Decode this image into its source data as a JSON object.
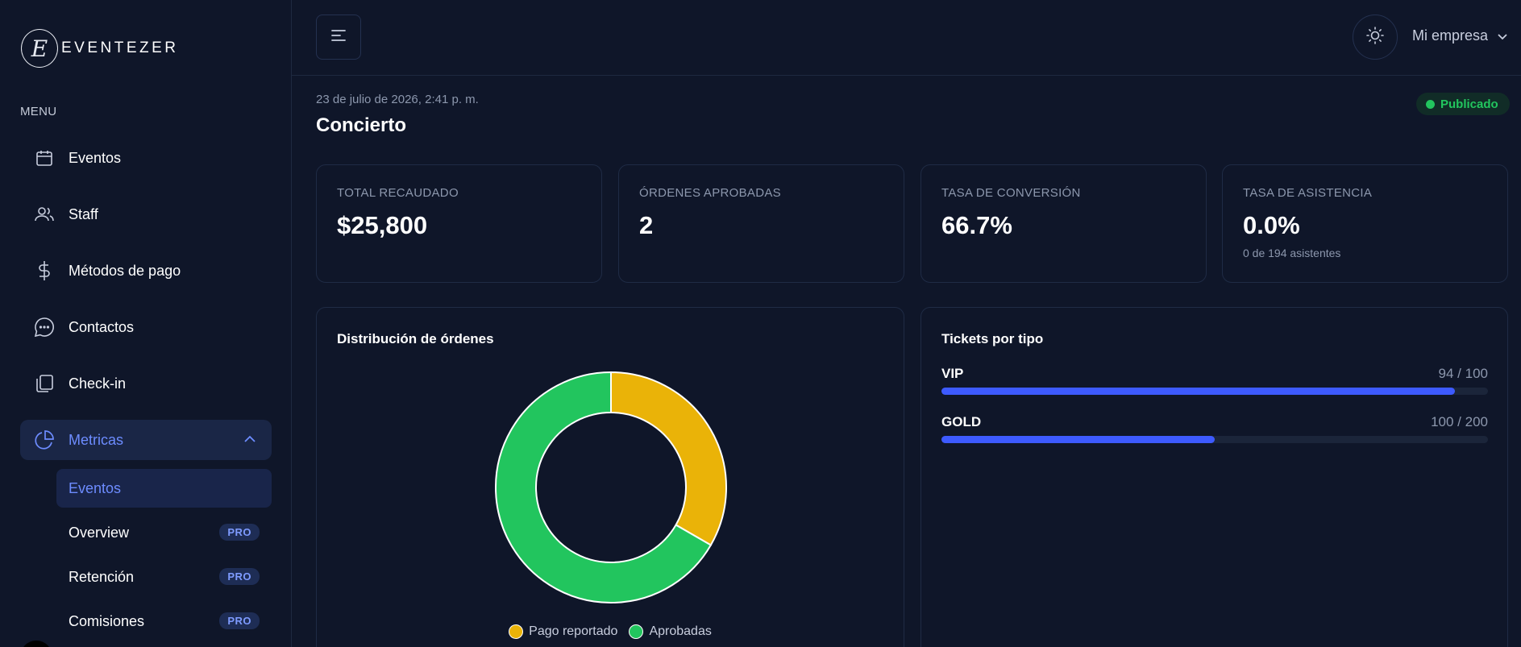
{
  "sidebar": {
    "logo_letter": "E",
    "logo_text": "EVENTEZER",
    "menu_label": "MENU",
    "items": [
      {
        "label": "Eventos",
        "icon": "calendar-icon"
      },
      {
        "label": "Staff",
        "icon": "users-icon"
      },
      {
        "label": "Métodos de pago",
        "icon": "dollar-icon"
      },
      {
        "label": "Contactos",
        "icon": "chat-icon"
      },
      {
        "label": "Check-in",
        "icon": "copy-icon"
      },
      {
        "label": "Metricas",
        "icon": "pie-chart-icon",
        "active": true,
        "expanded": true
      }
    ],
    "subitems": [
      {
        "label": "Eventos",
        "active": true
      },
      {
        "label": "Overview",
        "badge": "PRO"
      },
      {
        "label": "Retención",
        "badge": "PRO"
      },
      {
        "label": "Comisiones",
        "badge": "PRO"
      }
    ]
  },
  "header": {
    "menu_icon": "menu-icon",
    "theme_icon": "sun-icon",
    "company_label": "Mi empresa"
  },
  "event": {
    "date": "23 de julio de 2026, 2:41 p. m.",
    "title": "Concierto",
    "status": "Publicado",
    "status_color": "#22c55e"
  },
  "kpis": [
    {
      "label": "TOTAL RECAUDADO",
      "value": "$25,800",
      "sub": ""
    },
    {
      "label": "ÓRDENES APROBADAS",
      "value": "2",
      "sub": ""
    },
    {
      "label": "TASA DE CONVERSIÓN",
      "value": "66.7%",
      "sub": ""
    },
    {
      "label": "TASA DE ASISTENCIA",
      "value": "0.0%",
      "sub": "0 de 194 asistentes"
    }
  ],
  "orders_panel": {
    "title": "Distribución de órdenes"
  },
  "tickets_panel": {
    "title": "Tickets por tipo",
    "rows": [
      {
        "name": "VIP",
        "count": "94 / 100",
        "sold": 94,
        "total": 100
      },
      {
        "name": "GOLD",
        "count": "100 / 200",
        "sold": 100,
        "total": 200
      }
    ],
    "bar_color": "#3d5afe"
  },
  "chart_data": {
    "type": "pie",
    "title": "Distribución de órdenes",
    "categories": [
      "Pago reportado",
      "Aprobadas"
    ],
    "values": [
      1,
      2
    ],
    "colors": [
      "#eab308",
      "#22c55e"
    ],
    "legend": "bottom"
  }
}
